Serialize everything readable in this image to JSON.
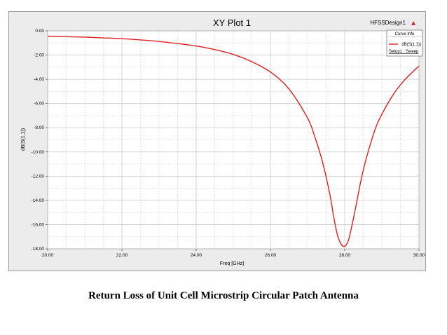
{
  "plot": {
    "title": "XY Plot 1",
    "design_name": "HFSSDesign1",
    "logo_symbol": "▲",
    "legend": {
      "header": "Curve Info",
      "curve_label": "dB(S(1,1))",
      "setup_label": "Setup1 : Sweep"
    }
  },
  "caption": "Return Loss of Unit Cell Microstrip Circular Patch Antenna",
  "colors": {
    "curve": "#e02020",
    "plot_bg": "#ffffff",
    "frame_bg": "#ececec",
    "grid": "#c8c8c8"
  },
  "chart_data": {
    "type": "line",
    "title": "XY Plot 1",
    "xlabel": "Freq [GHz]",
    "ylabel": "dB(S(1,1))",
    "xlim": [
      20,
      30
    ],
    "ylim": [
      -18,
      0
    ],
    "x_ticks": [
      "20.00",
      "22.00",
      "24.00",
      "26.00",
      "28.00",
      "30.00"
    ],
    "y_ticks": [
      "0.00",
      "-2.00",
      "-4.00",
      "-6.00",
      "-8.00",
      "-10.00",
      "-12.00",
      "-14.00",
      "-16.00",
      "-18.00"
    ],
    "grid": true,
    "legend_position": "top-right",
    "series": [
      {
        "name": "dB(S(1,1))",
        "x": [
          20.0,
          20.5,
          21.0,
          21.5,
          22.0,
          22.5,
          23.0,
          23.5,
          24.0,
          24.5,
          25.0,
          25.5,
          26.0,
          26.5,
          27.0,
          27.2,
          27.4,
          27.6,
          27.7,
          27.8,
          27.9,
          28.0,
          28.1,
          28.2,
          28.3,
          28.5,
          28.8,
          29.0,
          29.3,
          29.6,
          30.0
        ],
        "y": [
          -0.45,
          -0.48,
          -0.52,
          -0.58,
          -0.65,
          -0.75,
          -0.88,
          -1.05,
          -1.25,
          -1.55,
          -1.95,
          -2.55,
          -3.4,
          -4.8,
          -7.2,
          -8.8,
          -10.8,
          -13.5,
          -15.3,
          -16.8,
          -17.6,
          -17.8,
          -17.3,
          -16.0,
          -14.5,
          -11.5,
          -8.3,
          -6.9,
          -5.3,
          -4.1,
          -2.9
        ]
      }
    ]
  }
}
